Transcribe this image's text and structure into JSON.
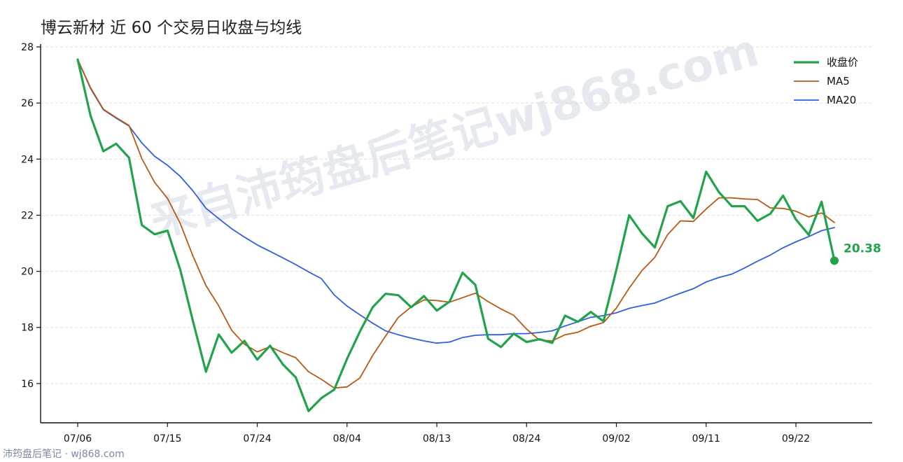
{
  "title": "博云新材 近 60 个交易日收盘与均线",
  "watermark": "来自沛筠盘后笔记wj868.com",
  "footer": "沛筠盘后笔记 · wj868.com",
  "colors": {
    "close": "#22a34a",
    "ma5": "#b85a16",
    "ma20": "#2f5fe0",
    "grid": "#dddddd",
    "axis": "#111111",
    "watermark": "#e6e9ef"
  },
  "chart_data": {
    "type": "line",
    "x_ticks": [
      "07/06",
      "07/15",
      "07/24",
      "08/04",
      "08/13",
      "08/24",
      "09/02",
      "09/11",
      "09/22"
    ],
    "x_tick_index": [
      0,
      7,
      14,
      21,
      28,
      35,
      42,
      49,
      56
    ],
    "ylim": [
      14.6,
      28.1
    ],
    "y_ticks": [
      16,
      18,
      20,
      22,
      24,
      26,
      28
    ],
    "grid": "horizontal dashed",
    "legend_position": "top-right",
    "series": [
      {
        "name": "收盘价",
        "key": "close",
        "values": [
          27.55,
          25.55,
          24.28,
          24.55,
          24.05,
          21.65,
          21.32,
          21.45,
          20.05,
          18.2,
          16.42,
          17.75,
          17.1,
          17.52,
          16.85,
          17.35,
          16.68,
          16.22,
          15.02,
          15.48,
          15.78,
          16.88,
          17.85,
          18.72,
          19.2,
          19.15,
          18.72,
          19.12,
          18.6,
          18.92,
          19.95,
          19.52,
          17.6,
          17.3,
          17.78,
          17.48,
          17.58,
          17.45,
          18.42,
          18.2,
          18.55,
          18.22,
          20.05,
          22.0,
          21.35,
          20.85,
          22.32,
          22.5,
          21.9,
          23.55,
          22.82,
          22.32,
          22.32,
          21.8,
          22.05,
          22.7,
          21.85,
          21.3,
          22.48,
          20.38
        ]
      },
      {
        "name": "MA5",
        "key": "ma5",
        "values": [
          27.55,
          26.55,
          25.78,
          25.48,
          25.2,
          24.02,
          23.17,
          22.6,
          21.7,
          20.53,
          19.49,
          18.77,
          17.9,
          17.4,
          17.13,
          17.31,
          17.1,
          16.92,
          16.42,
          16.15,
          15.84,
          15.88,
          16.2,
          17.0,
          17.69,
          18.36,
          18.73,
          18.98,
          18.96,
          18.9,
          19.06,
          19.22,
          18.92,
          18.66,
          18.43,
          17.94,
          17.55,
          17.52,
          17.74,
          17.83,
          18.04,
          18.17,
          18.69,
          19.4,
          20.03,
          20.5,
          21.31,
          21.8,
          21.78,
          22.22,
          22.62,
          22.62,
          22.58,
          22.56,
          22.26,
          22.24,
          22.14,
          21.94,
          22.08,
          21.74
        ]
      },
      {
        "name": "MA20",
        "key": "ma20",
        "values": [
          27.55,
          26.52,
          25.76,
          25.46,
          25.18,
          24.58,
          24.1,
          23.78,
          23.38,
          22.86,
          22.25,
          21.88,
          21.52,
          21.22,
          20.94,
          20.71,
          20.48,
          20.24,
          19.98,
          19.74,
          19.16,
          18.76,
          18.45,
          18.15,
          17.88,
          17.74,
          17.62,
          17.52,
          17.44,
          17.48,
          17.64,
          17.72,
          17.74,
          17.74,
          17.78,
          17.78,
          17.82,
          17.88,
          18.05,
          18.2,
          18.36,
          18.42,
          18.52,
          18.68,
          18.78,
          18.87,
          19.05,
          19.22,
          19.38,
          19.62,
          19.78,
          19.9,
          20.12,
          20.36,
          20.58,
          20.84,
          21.05,
          21.24,
          21.45,
          21.56
        ]
      }
    ],
    "last_value_label": "20.38"
  }
}
